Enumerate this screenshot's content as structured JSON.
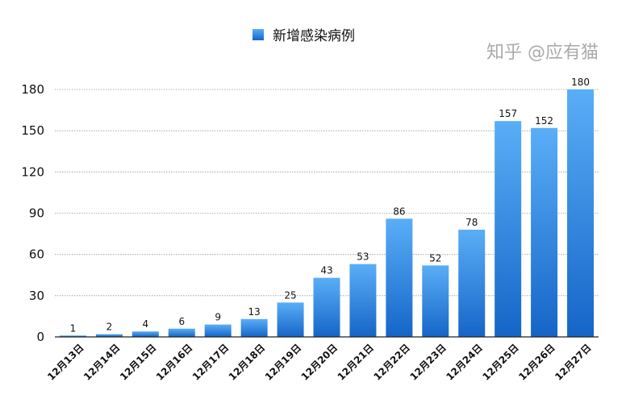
{
  "chart_data": {
    "type": "bar",
    "title": "",
    "xlabel": "",
    "ylabel": "",
    "legend": {
      "position": "top-center",
      "entries": [
        "新增感染病例"
      ]
    },
    "categories": [
      "12月13日",
      "12月14日",
      "12月15日",
      "12月16日",
      "12月17日",
      "12月18日",
      "12月19日",
      "12月20日",
      "12月21日",
      "12月22日",
      "12月23日",
      "12月24日",
      "12月25日",
      "12月26日",
      "12月27日"
    ],
    "series": [
      {
        "name": "新增感染病例",
        "values": [
          1,
          2,
          4,
          6,
          9,
          13,
          25,
          43,
          53,
          86,
          52,
          78,
          157,
          152,
          180
        ]
      }
    ],
    "ylim": [
      0,
      180
    ],
    "yticks": [
      0,
      30,
      60,
      90,
      120,
      150,
      180
    ],
    "grid": true,
    "data_labels": true,
    "colors": {
      "bar_top": "#5aaef7",
      "bar_bottom": "#1565c8",
      "grid": "#999999"
    }
  },
  "watermark": "知乎 @应有猫"
}
